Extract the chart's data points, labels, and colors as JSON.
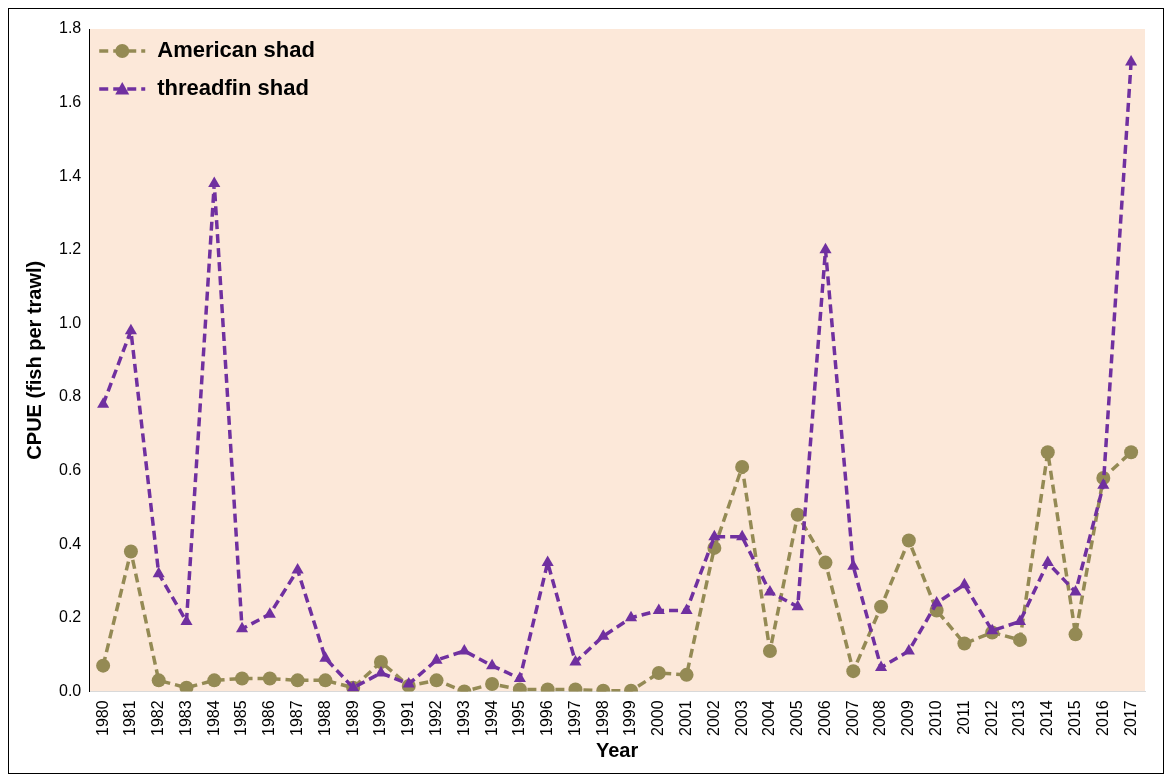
{
  "chart_data": {
    "type": "line",
    "xlabel": "Year",
    "ylabel": "CPUE (fish per trawl)",
    "categories": [
      "1980",
      "1981",
      "1982",
      "1983",
      "1984",
      "1985",
      "1986",
      "1987",
      "1988",
      "1989",
      "1990",
      "1991",
      "1992",
      "1993",
      "1994",
      "1995",
      "1996",
      "1997",
      "1998",
      "1999",
      "2000",
      "2001",
      "2002",
      "2003",
      "2004",
      "2005",
      "2006",
      "2007",
      "2008",
      "2009",
      "2010",
      "2011",
      "2012",
      "2013",
      "2014",
      "2015",
      "2016",
      "2017"
    ],
    "series": [
      {
        "name": "American shad",
        "color": "#948a54",
        "marker": "circle",
        "line_style": "dashed",
        "values": [
          0.07,
          0.38,
          0.03,
          0.01,
          0.03,
          0.035,
          0.035,
          0.03,
          0.03,
          0.01,
          0.08,
          0.015,
          0.03,
          0.0,
          0.02,
          0.005,
          0.005,
          0.005,
          0.002,
          0.002,
          0.05,
          0.045,
          0.39,
          0.61,
          0.11,
          0.48,
          0.35,
          0.055,
          0.23,
          0.41,
          0.22,
          0.13,
          0.16,
          0.14,
          0.65,
          0.155,
          0.58,
          0.65
        ]
      },
      {
        "name": "threadfin shad",
        "color": "#7030a0",
        "marker": "triangle",
        "line_style": "dashed",
        "values": [
          0.78,
          0.98,
          0.32,
          0.19,
          1.38,
          0.17,
          0.21,
          0.33,
          0.09,
          0.01,
          0.05,
          0.02,
          0.085,
          0.11,
          0.07,
          0.035,
          0.35,
          0.08,
          0.15,
          0.2,
          0.22,
          0.22,
          0.42,
          0.42,
          0.27,
          0.23,
          1.2,
          0.34,
          0.065,
          0.11,
          0.24,
          0.29,
          0.165,
          0.19,
          0.35,
          0.27,
          0.56,
          1.71
        ]
      }
    ],
    "ylim": [
      0,
      1.8
    ],
    "yticks": [
      {
        "value": 0,
        "label": "0.0"
      },
      {
        "value": 0.2,
        "label": "0.2"
      },
      {
        "value": 0.4,
        "label": "0.4"
      },
      {
        "value": 0.6,
        "label": "0.6"
      },
      {
        "value": 0.8,
        "label": "0.8"
      },
      {
        "value": 1.0,
        "label": "1.0"
      },
      {
        "value": 1.2,
        "label": "1.2"
      },
      {
        "value": 1.4,
        "label": "1.4"
      },
      {
        "value": 1.6,
        "label": "1.6"
      },
      {
        "value": 1.8,
        "label": "1.8"
      }
    ],
    "grid": false,
    "legend": "top left"
  }
}
